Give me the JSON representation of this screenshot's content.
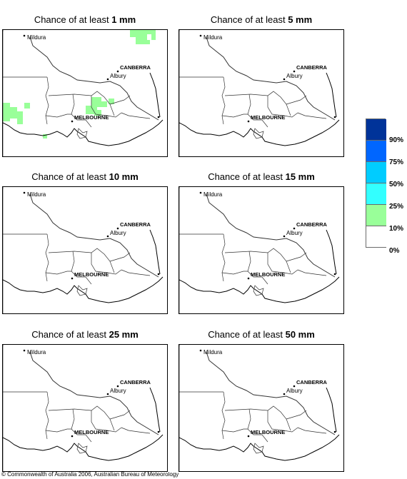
{
  "panels": [
    {
      "prefix": "Chance of at least ",
      "amount": "1 mm",
      "rain_cover": "10-25%"
    },
    {
      "prefix": "Chance of at least ",
      "amount": "5 mm",
      "rain_cover": "none"
    },
    {
      "prefix": "Chance of at least ",
      "amount": "10 mm",
      "rain_cover": "none"
    },
    {
      "prefix": "Chance of at least ",
      "amount": "15 mm",
      "rain_cover": "none"
    },
    {
      "prefix": "Chance of at least ",
      "amount": "25 mm",
      "rain_cover": "none"
    },
    {
      "prefix": "Chance of at least ",
      "amount": "50 mm",
      "rain_cover": "none"
    }
  ],
  "places": {
    "mildura": "Mildura",
    "canberra": "CANBERRA",
    "albury": "Albury",
    "melbourne": "MELBOURNE"
  },
  "legend": {
    "labels": [
      "90%",
      "75%",
      "50%",
      "25%",
      "10%",
      "0%"
    ],
    "colors": [
      "#003399",
      "#0066ff",
      "#00ccff",
      "#33ffff",
      "#99ff99",
      "#ffffff"
    ]
  },
  "copyright": "© Commonwealth of Australia 2006, Australian Bureau of Meteorology"
}
